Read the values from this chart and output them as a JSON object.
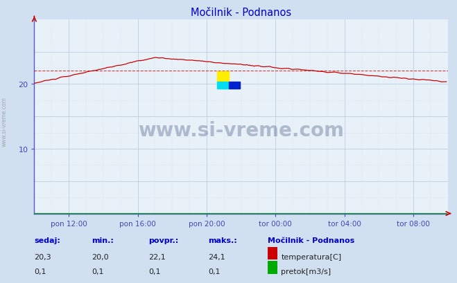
{
  "title": "Močilnik - Podnanos",
  "title_color": "#0000cc",
  "bg_color": "#d0e0f0",
  "plot_bg_color": "#e8f0f8",
  "grid_major_color": "#b0c8e0",
  "grid_minor_color": "#d0dff0",
  "x_tick_labels": [
    "pon 12:00",
    "pon 16:00",
    "pon 20:00",
    "tor 00:00",
    "tor 04:00",
    "tor 08:00"
  ],
  "y_ticks": [
    10,
    20
  ],
  "y_lim": [
    0,
    30
  ],
  "x_lim": [
    0,
    288
  ],
  "temp_color": "#cc0000",
  "flow_color": "#00aa00",
  "avg_line_color": "#cc0000",
  "avg_line_value": 22.1,
  "watermark_text": "www.si-vreme.com",
  "watermark_color": "#1a3060",
  "sidebar_text": "www.si-vreme.com",
  "table_headers": [
    "sedaj:",
    "min.:",
    "povpr.:",
    "maks.:"
  ],
  "table_header_color": "#0000cc",
  "station_name": "Močilnik - Podnanos",
  "station_color": "#0000cc",
  "temp_label": "temperatura[C]",
  "flow_label": "pretok[m3/s]",
  "temp_values": [
    "20,3",
    "20,0",
    "22,1",
    "24,1"
  ],
  "flow_values": [
    "0,1",
    "0,1",
    "0,1",
    "0,1"
  ],
  "axis_color": "#5555cc",
  "tick_label_color": "#4444bb",
  "n_points": 288,
  "peak_index": 84,
  "peak_temp": 24.1,
  "start_temp": 20.1,
  "end_temp": 20.3,
  "avg_temp": 22.1
}
